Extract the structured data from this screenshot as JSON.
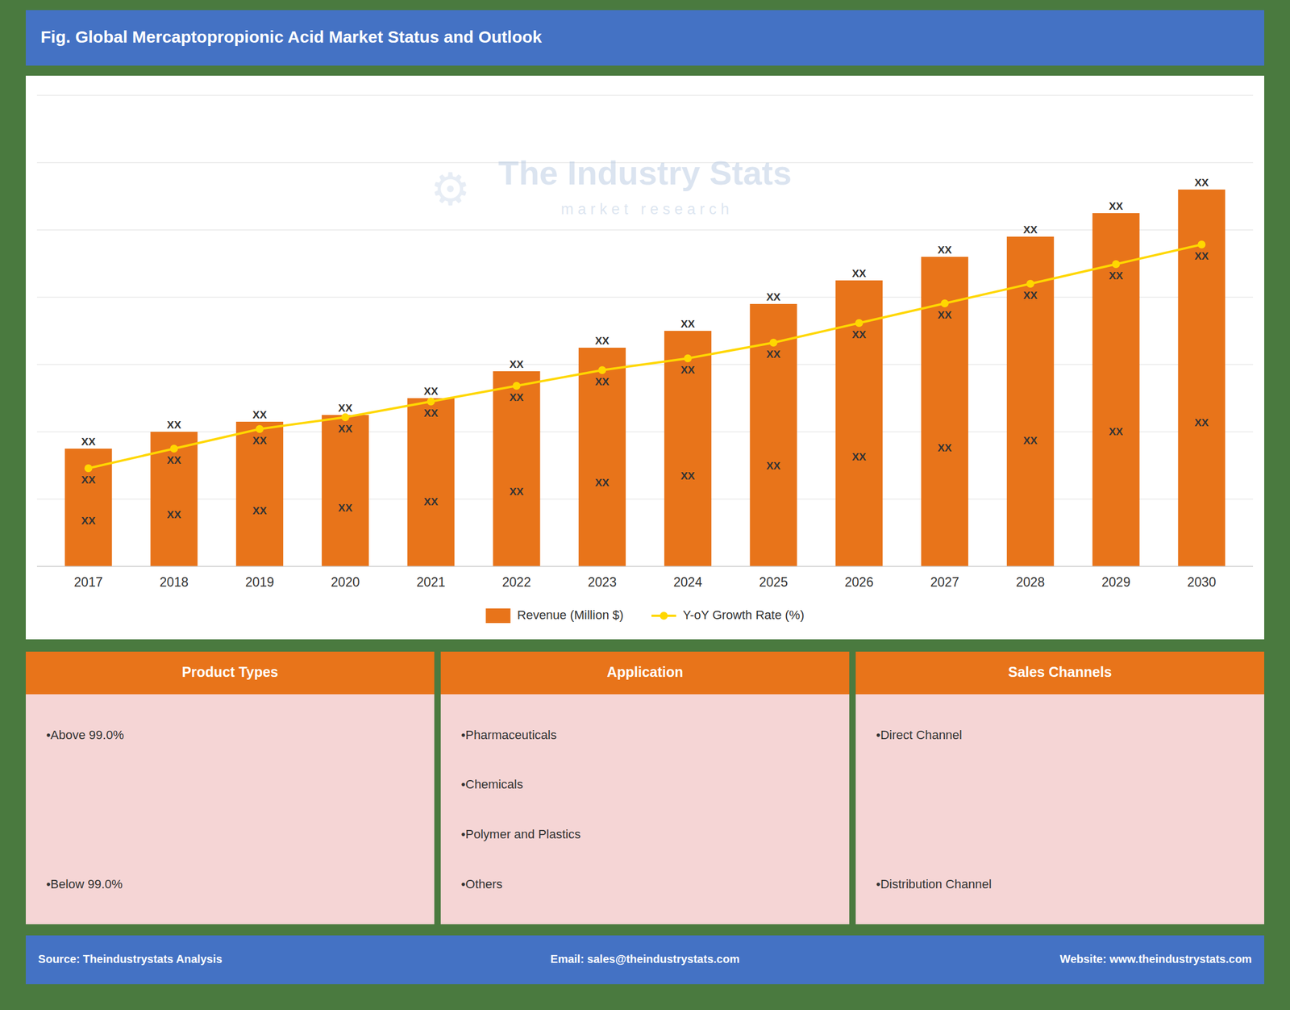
{
  "chart_data": {
    "type": "bar",
    "title": "Fig. Global Mercaptopropionic Acid Market Status and Outlook",
    "categories": [
      "2017",
      "2018",
      "2019",
      "2020",
      "2021",
      "2022",
      "2023",
      "2024",
      "2025",
      "2026",
      "2027",
      "2028",
      "2029",
      "2030"
    ],
    "series": [
      {
        "name": "Revenue (Million $)",
        "type": "bar",
        "color": "#E8741A",
        "values": [
          3.5,
          4.0,
          4.3,
          4.5,
          5.0,
          5.8,
          6.5,
          7.0,
          7.8,
          8.5,
          9.2,
          9.8,
          10.5,
          11.2
        ],
        "annotations": [
          {
            "text": "XX",
            "position": "top"
          },
          {
            "text": "XX",
            "position": "inside"
          }
        ]
      },
      {
        "name": "Y-oY Growth Rate (%)",
        "type": "line",
        "axis": "y2",
        "color": "#FFD700",
        "marker": "circle",
        "values": [
          2.5,
          3.0,
          3.5,
          3.8,
          4.2,
          4.6,
          5.0,
          5.3,
          5.7,
          6.2,
          6.7,
          7.2,
          7.7,
          8.2
        ],
        "annotations": [
          {
            "text": "XX",
            "position": "below"
          }
        ]
      }
    ],
    "ylim": [
      0,
      14
    ],
    "yticks": [
      0,
      2,
      4,
      6,
      8,
      10,
      12,
      14
    ],
    "y2lim": [
      0,
      12
    ],
    "grid": true,
    "tick_labels": "x",
    "legend": "bottom",
    "watermark": {
      "text": "The Industry Stats",
      "subtitle": "m a r k e t   r e s e a r c h",
      "icon": "⚙"
    }
  },
  "panels": [
    {
      "title": "Product Types",
      "items": [
        "•Above 99.0%",
        "•Below 99.0%"
      ]
    },
    {
      "title": "Application",
      "items": [
        "•Pharmaceuticals",
        "•Chemicals",
        "•Polymer and Plastics",
        "•Others"
      ]
    },
    {
      "title": "Sales Channels",
      "items": [
        "•Direct Channel",
        "•Distribution Channel"
      ]
    }
  ],
  "footer": {
    "left": "Source: Theindustrystats Analysis",
    "center": "Email: sales@theindustrystats.com",
    "right": "Website: www.theindustrystats.com"
  }
}
